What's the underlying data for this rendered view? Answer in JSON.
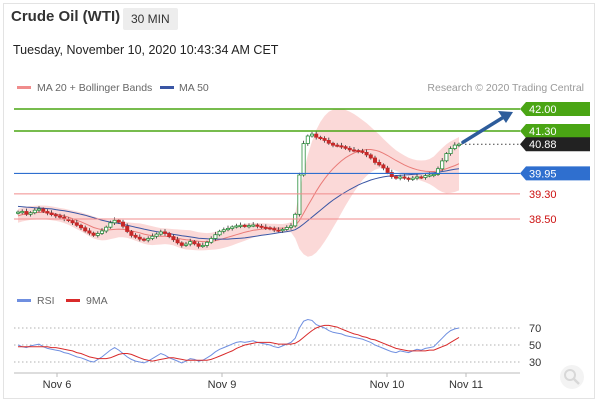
{
  "header": {
    "instrument": "Crude Oil (WTI)",
    "timeframe": "30 MIN",
    "datetime": "Tuesday, November 10, 2020 10:43:34 AM CET"
  },
  "legend": {
    "ma20_bollinger": "MA 20 + Bollinger Bands",
    "ma50": "MA 50",
    "rsi": "RSI",
    "rsi_ma": "9MA",
    "credit": "Research © 2020 Trading Central"
  },
  "colors": {
    "up": "#2a8f3e",
    "down": "#c62828",
    "bollinger_fill": "#fbd5d4",
    "ma20": "#e97b78",
    "ma50": "#3a56a4",
    "resistance": "#4aa514",
    "pivot": "#2f6fcf",
    "support": "#f08c8c",
    "support_label": "#cc1111",
    "price_label": "#222222",
    "rsi": "#6f8fe0",
    "rsi_ma": "#d92b2b",
    "arrow": "#2d5c9b"
  },
  "chart_data": [
    {
      "type": "candlestick",
      "title": "Crude Oil (WTI) 30 MIN",
      "x_labels": [
        "Nov 6",
        "Nov 9",
        "Nov 10",
        "Nov 11"
      ],
      "price_range": [
        37.2,
        43.2
      ],
      "levels": [
        {
          "value": 42.0,
          "label": "42.00",
          "kind": "resistance"
        },
        {
          "value": 41.3,
          "label": "41.30",
          "kind": "resistance"
        },
        {
          "value": 40.88,
          "label": "40.88",
          "kind": "last_price"
        },
        {
          "value": 39.95,
          "label": "39.95",
          "kind": "pivot"
        },
        {
          "value": 39.3,
          "label": "39.30",
          "kind": "support"
        },
        {
          "value": 38.5,
          "label": "38.50",
          "kind": "support"
        }
      ],
      "closes": [
        38.72,
        38.74,
        38.65,
        38.7,
        38.78,
        38.82,
        38.74,
        38.69,
        38.64,
        38.6,
        38.56,
        38.5,
        38.45,
        38.38,
        38.3,
        38.22,
        38.12,
        38.05,
        37.98,
        38.04,
        38.12,
        38.24,
        38.38,
        38.46,
        38.4,
        38.27,
        38.1,
        37.98,
        37.92,
        37.86,
        37.83,
        37.88,
        37.95,
        38.02,
        38.09,
        38.04,
        37.94,
        37.84,
        37.74,
        37.66,
        37.7,
        37.78,
        37.71,
        37.63,
        37.66,
        37.76,
        37.88,
        38.0,
        38.11,
        38.16,
        38.2,
        38.25,
        38.28,
        38.3,
        38.27,
        38.29,
        38.31,
        38.27,
        38.24,
        38.22,
        38.19,
        38.15,
        38.13,
        38.17,
        38.23,
        38.28,
        38.65,
        39.9,
        40.9,
        41.14,
        41.2,
        41.1,
        41.06,
        41.0,
        40.91,
        40.85,
        40.83,
        40.8,
        40.75,
        40.7,
        40.68,
        40.66,
        40.62,
        40.54,
        40.44,
        40.3,
        40.22,
        40.12,
        39.98,
        39.85,
        39.8,
        39.84,
        39.8,
        39.76,
        39.8,
        39.84,
        39.82,
        39.88,
        39.9,
        39.92,
        40.1,
        40.35,
        40.58,
        40.74,
        40.85,
        40.88
      ],
      "ma20": [
        38.6,
        38.64,
        38.67,
        38.69,
        38.7,
        38.71,
        38.71,
        38.7,
        38.68,
        38.66,
        38.63,
        38.6,
        38.56,
        38.51,
        38.46,
        38.41,
        38.35,
        38.29,
        38.23,
        38.19,
        38.16,
        38.15,
        38.16,
        38.17,
        38.18,
        38.17,
        38.15,
        38.12,
        38.09,
        38.06,
        38.02,
        37.99,
        37.97,
        37.96,
        37.95,
        37.95,
        37.94,
        37.92,
        37.89,
        37.86,
        37.84,
        37.83,
        37.81,
        37.79,
        37.78,
        37.78,
        37.79,
        37.81,
        37.84,
        37.88,
        37.92,
        37.96,
        38.0,
        38.04,
        38.08,
        38.11,
        38.14,
        38.16,
        38.18,
        38.19,
        38.2,
        38.21,
        38.21,
        38.21,
        38.22,
        38.24,
        38.29,
        38.45,
        38.68,
        38.92,
        39.15,
        39.38,
        39.59,
        39.78,
        39.95,
        40.1,
        40.23,
        40.35,
        40.45,
        40.53,
        40.6,
        40.65,
        40.69,
        40.71,
        40.71,
        40.69,
        40.65,
        40.59,
        40.52,
        40.44,
        40.36,
        40.29,
        40.22,
        40.16,
        40.11,
        40.07,
        40.04,
        40.02,
        40.01,
        40.01,
        40.03,
        40.06,
        40.1,
        40.15,
        40.2,
        40.26
      ],
      "ma50": [
        38.9,
        38.89,
        38.88,
        38.87,
        38.86,
        38.85,
        38.84,
        38.83,
        38.82,
        38.8,
        38.78,
        38.76,
        38.74,
        38.71,
        38.68,
        38.65,
        38.62,
        38.58,
        38.54,
        38.5,
        38.46,
        38.43,
        38.4,
        38.38,
        38.36,
        38.33,
        38.3,
        38.27,
        38.24,
        38.21,
        38.18,
        38.15,
        38.12,
        38.1,
        38.08,
        38.06,
        38.04,
        38.01,
        37.99,
        37.97,
        37.95,
        37.93,
        37.91,
        37.89,
        37.88,
        37.87,
        37.86,
        37.86,
        37.86,
        37.86,
        37.86,
        37.87,
        37.88,
        37.89,
        37.9,
        37.92,
        37.94,
        37.96,
        37.98,
        38.0,
        38.02,
        38.04,
        38.06,
        38.08,
        38.1,
        38.12,
        38.16,
        38.24,
        38.34,
        38.45,
        38.56,
        38.67,
        38.78,
        38.89,
        39.0,
        39.1,
        39.19,
        39.28,
        39.36,
        39.44,
        39.51,
        39.58,
        39.64,
        39.69,
        39.74,
        39.78,
        39.81,
        39.84,
        39.86,
        39.87,
        39.88,
        39.89,
        39.9,
        39.91,
        39.92,
        39.93,
        39.94,
        39.95,
        39.96,
        39.97,
        39.99,
        40.01,
        40.03,
        40.06,
        40.08,
        40.1
      ],
      "bb_width": [
        0.22,
        0.22,
        0.22,
        0.22,
        0.22,
        0.22,
        0.22,
        0.22,
        0.22,
        0.22,
        0.22,
        0.23,
        0.24,
        0.26,
        0.28,
        0.3,
        0.32,
        0.34,
        0.35,
        0.35,
        0.34,
        0.32,
        0.3,
        0.28,
        0.26,
        0.25,
        0.25,
        0.26,
        0.28,
        0.3,
        0.31,
        0.31,
        0.3,
        0.28,
        0.26,
        0.25,
        0.25,
        0.26,
        0.28,
        0.3,
        0.31,
        0.31,
        0.3,
        0.29,
        0.28,
        0.27,
        0.27,
        0.28,
        0.29,
        0.3,
        0.3,
        0.3,
        0.29,
        0.28,
        0.27,
        0.25,
        0.23,
        0.21,
        0.19,
        0.17,
        0.15,
        0.14,
        0.13,
        0.13,
        0.14,
        0.16,
        0.4,
        0.9,
        1.3,
        1.62,
        1.82,
        1.95,
        2.0,
        2.0,
        1.96,
        1.88,
        1.78,
        1.66,
        1.52,
        1.38,
        1.24,
        1.1,
        0.96,
        0.84,
        0.72,
        0.62,
        0.54,
        0.46,
        0.4,
        0.36,
        0.33,
        0.31,
        0.3,
        0.29,
        0.29,
        0.3,
        0.32,
        0.35,
        0.4,
        0.48,
        0.6,
        0.7,
        0.78,
        0.82,
        0.84,
        0.85
      ],
      "series": [
        {
          "name": "MA 20 + Bollinger Bands"
        },
        {
          "name": "MA 50"
        }
      ]
    },
    {
      "type": "line",
      "title": "RSI",
      "y_ticks": [
        70,
        50,
        30
      ],
      "y_range": [
        15,
        85
      ],
      "rsi": [
        50,
        48,
        47,
        49,
        50,
        51,
        48,
        46,
        45,
        44,
        43,
        41,
        40,
        38,
        36,
        35,
        33,
        31,
        30,
        33,
        36,
        40,
        44,
        47,
        44,
        40,
        36,
        33,
        31,
        30,
        29,
        31,
        34,
        37,
        40,
        38,
        35,
        33,
        31,
        29,
        31,
        34,
        33,
        31,
        32,
        35,
        38,
        42,
        45,
        47,
        49,
        51,
        53,
        54,
        53,
        54,
        55,
        53,
        52,
        51,
        50,
        48,
        47,
        49,
        51,
        53,
        58,
        70,
        78,
        80,
        79,
        74,
        72,
        70,
        67,
        65,
        64,
        63,
        61,
        60,
        59,
        58,
        57,
        55,
        53,
        50,
        48,
        46,
        44,
        42,
        41,
        43,
        42,
        41,
        43,
        45,
        44,
        46,
        47,
        48,
        53,
        58,
        63,
        67,
        69,
        70
      ],
      "rsi_ma": [
        48,
        48,
        48,
        48,
        48,
        48,
        48,
        48,
        47,
        47,
        46,
        45,
        44,
        43,
        41,
        40,
        38,
        36,
        35,
        34,
        34,
        34,
        35,
        37,
        39,
        40,
        40,
        39,
        37,
        35,
        33,
        32,
        31,
        32,
        33,
        34,
        35,
        35,
        34,
        33,
        32,
        32,
        32,
        32,
        32,
        32,
        33,
        35,
        37,
        39,
        41,
        43,
        46,
        48,
        50,
        51,
        52,
        53,
        53,
        53,
        53,
        52,
        51,
        51,
        51,
        51,
        52,
        55,
        59,
        63,
        67,
        70,
        72,
        73,
        73,
        72,
        71,
        69,
        67,
        65,
        63,
        62,
        60,
        59,
        57,
        56,
        54,
        52,
        50,
        48,
        46,
        45,
        44,
        43,
        43,
        43,
        43,
        43,
        44,
        44,
        46,
        48,
        50,
        53,
        56,
        59
      ]
    }
  ]
}
